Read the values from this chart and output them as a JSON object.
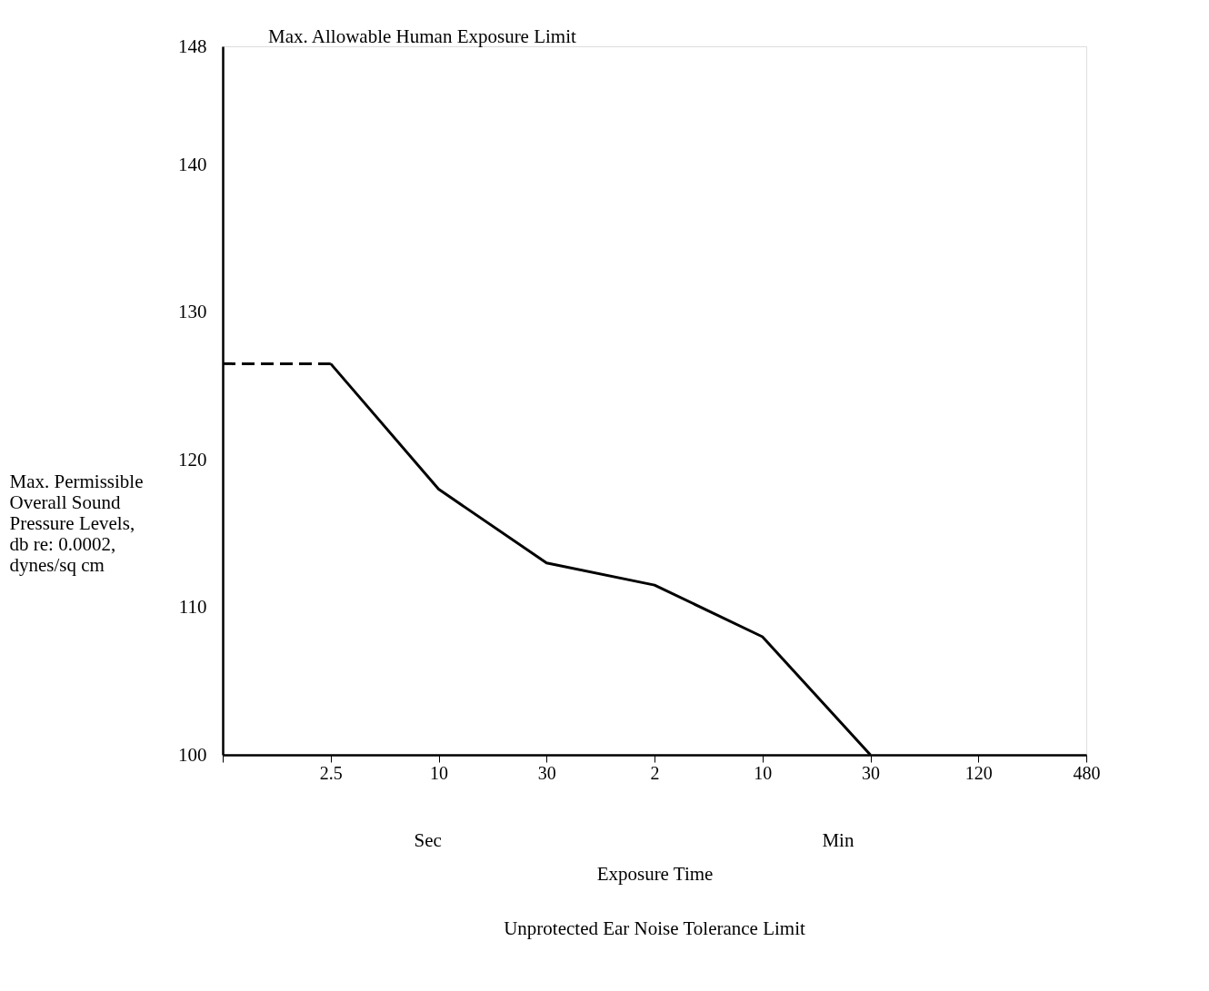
{
  "chart_data": {
    "type": "line",
    "title": "Unprotected Ear Noise Tolerance Limit",
    "xlabel": "Exposure Time",
    "ylabel": "Max. Permissible\nOverall Sound\nPressure Levels,\ndb re:  0.0002,\ndynes/sq cm",
    "categories": [
      null,
      "2.5",
      "10",
      "30",
      "2",
      "10",
      "30",
      "120",
      "480"
    ],
    "series": [
      {
        "color": "#000000",
        "line_style": "dashed",
        "values": [
          126.5,
          126.5,
          null,
          null,
          null,
          null,
          null,
          null,
          null
        ]
      },
      {
        "color": "#000000",
        "line_style": "solid",
        "values": [
          null,
          126.5,
          118,
          113,
          111.5,
          108,
          100,
          null,
          null
        ]
      }
    ],
    "ylim": [
      100,
      148
    ],
    "yticks": [
      100,
      110,
      120,
      130,
      140,
      148
    ],
    "annotations": [
      "Max. Allowable Human Exposure Limit",
      "Sec",
      "Min"
    ],
    "grid": false,
    "legend": false,
    "marker": "none"
  }
}
